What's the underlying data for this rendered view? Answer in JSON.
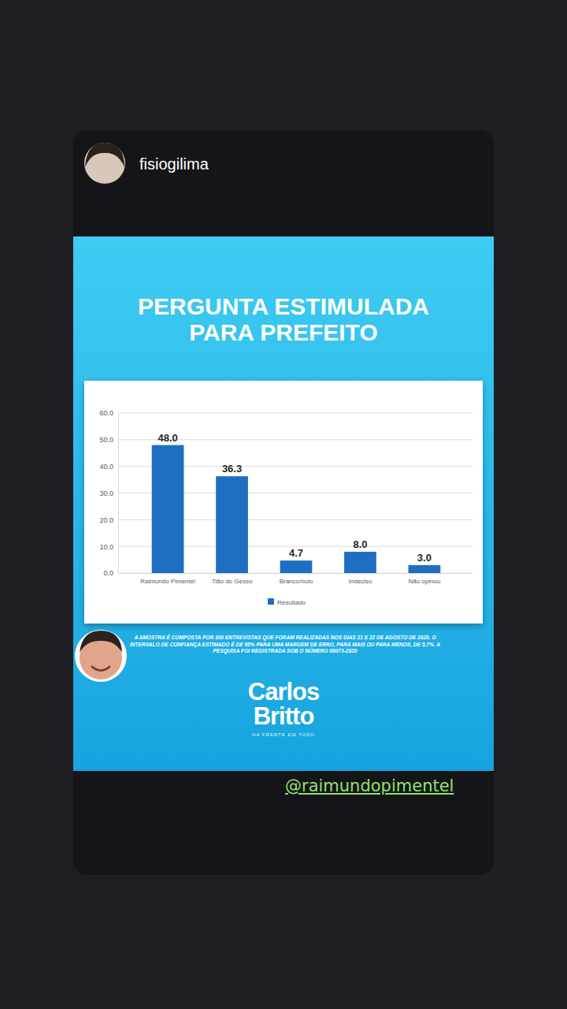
{
  "chart_data": {
    "type": "bar",
    "title": "PERGUNTA ESTIMULADA PARA PREFEITO",
    "categories": [
      "Raimundo Pimentel",
      "Tião do Gesso",
      "Branco/nulo",
      "Indeciso",
      "Não opinou"
    ],
    "series": [
      {
        "name": "Resultado",
        "color": "#1f6fc1",
        "values": [
          48.0,
          36.3,
          4.7,
          8.0,
          3.0
        ],
        "value_labels": [
          "48.0",
          "36.3",
          "4.7",
          "8.0",
          "3.0"
        ]
      }
    ],
    "ylim": [
      0,
      60
    ],
    "yticks": [
      {
        "value": 0,
        "label": "0.0"
      },
      {
        "value": 10,
        "label": "10.0"
      },
      {
        "value": 20,
        "label": "20.0"
      },
      {
        "value": 30,
        "label": "30.0"
      },
      {
        "value": 40,
        "label": "40.0"
      },
      {
        "value": 50,
        "label": "50.0"
      },
      {
        "value": 60,
        "label": "60.0"
      }
    ],
    "grid": true,
    "data_labels": true,
    "legend": "bottom"
  },
  "story": {
    "username": "fisiogilima",
    "footnote": "A AMOSTRA É COMPOSTA POR 300 ENTREVISTAS QUE FORAM REALIZADAS NOS DIAS 21 E 22 DE AGOSTO DE 2020. O INTERVALO DE CONFIANÇA ESTIMADO É DE 95% PARA UMA MARGEM DE ERRO, PARA MAIS OU PARA MENOS, DE 5,7%. A PESQUISA FOI REGISTRADA SOB O NÚMERO 08073-2020",
    "brand": "Carlos Britto",
    "tagline": "NA FRENTE EM TUDO",
    "mention": "@raimundopimentel"
  }
}
